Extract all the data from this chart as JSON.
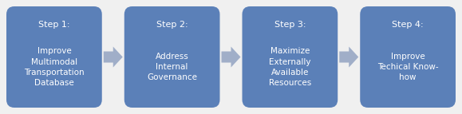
{
  "steps": [
    {
      "title": "Step 1:",
      "body": "Improve\nMultimodal\nTransportation\nDatabase"
    },
    {
      "title": "Step 2:",
      "body": "Address\nInternal\nGovernance"
    },
    {
      "title": "Step 3:",
      "body": "Maximize\nExternally\nAvailable\nResources"
    },
    {
      "title": "Step 4:",
      "body": "Improve\nTechical Know-\nhow"
    }
  ],
  "box_color": "#5b80b8",
  "arrow_color": "#a0aec8",
  "text_color": "#ffffff",
  "background_color": "#f0f0f0",
  "fig_width": 5.79,
  "fig_height": 1.43,
  "title_fontsize": 8.0,
  "body_fontsize": 7.5
}
